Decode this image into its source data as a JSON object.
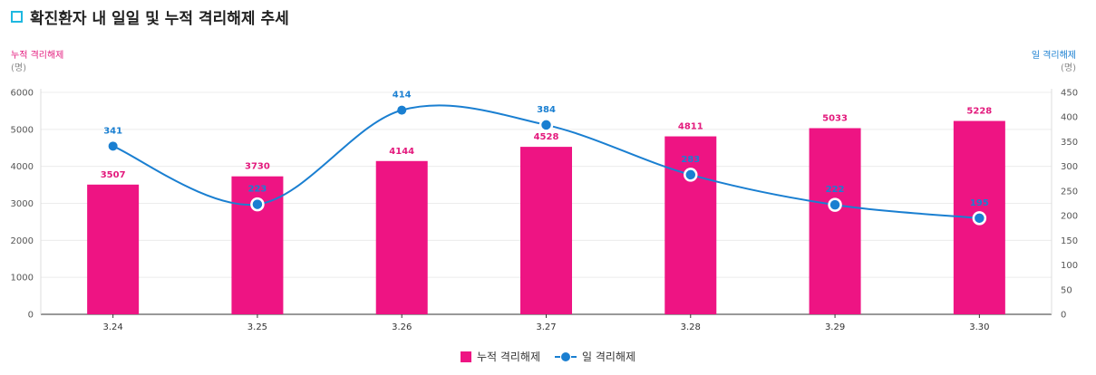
{
  "title": "확진환자 내 일일 및 누적 격리해제 추세",
  "left_axis": {
    "title": "누적 격리해제",
    "unit": "(명)"
  },
  "right_axis": {
    "title": "일 격리해제",
    "unit": "(명)"
  },
  "legend": {
    "bar": "누적 격리해제",
    "line": "일 격리해제"
  },
  "colors": {
    "bar": "#ee1483",
    "line": "#1a7fd1",
    "bar_label": "#e31a7d"
  },
  "chart_data": {
    "type": "bar+line",
    "title": "확진환자 내 일일 및 누적 격리해제 추세",
    "categories": [
      "3.24",
      "3.25",
      "3.26",
      "3.27",
      "3.28",
      "3.29",
      "3.30"
    ],
    "series": [
      {
        "name": "누적 격리해제",
        "type": "bar",
        "axis": "left",
        "values": [
          3507,
          3730,
          4144,
          4528,
          4811,
          5033,
          5228
        ]
      },
      {
        "name": "일 격리해제",
        "type": "line",
        "axis": "right",
        "values": [
          341,
          223,
          414,
          384,
          283,
          222,
          195
        ]
      }
    ],
    "ylim_left": [
      0,
      6000
    ],
    "yticks_left": [
      0,
      1000,
      2000,
      3000,
      4000,
      5000,
      6000
    ],
    "ylim_right": [
      0,
      450
    ],
    "yticks_right": [
      0,
      50,
      100,
      150,
      200,
      250,
      300,
      350,
      400,
      450
    ],
    "ylabel_left": "누적 격리해제 (명)",
    "ylabel_right": "일 격리해제 (명)",
    "grid": true,
    "legend_position": "bottom-center"
  }
}
